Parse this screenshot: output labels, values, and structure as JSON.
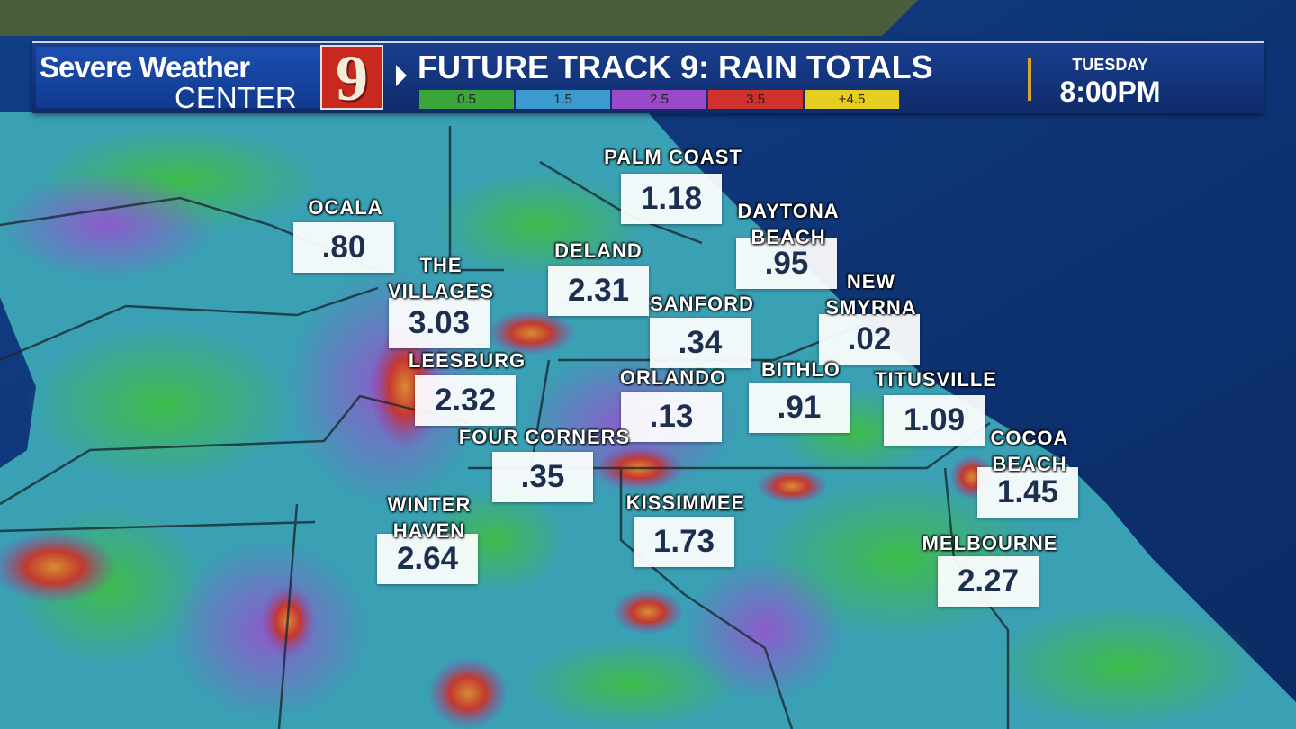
{
  "header": {
    "brand_line1": "Severe Weather",
    "brand_line2": "CENTER",
    "logo_number": "9",
    "title": "FUTURE TRACK 9: RAIN TOTALS",
    "day": "TUESDAY",
    "time": "8:00PM"
  },
  "legend": [
    {
      "label": "0.5",
      "color": "#3aa63a"
    },
    {
      "label": "1.5",
      "color": "#3b9bd0"
    },
    {
      "label": "2.5",
      "color": "#9a49c8"
    },
    {
      "label": "3.5",
      "color": "#d0312d"
    },
    {
      "label": "+4.5",
      "color": "#e5cd22"
    }
  ],
  "cities": [
    {
      "name": "PALM COAST",
      "value": "1.18"
    },
    {
      "name": "OCALA",
      "value": ".80"
    },
    {
      "name": "DAYTONA\nBEACH",
      "value": ".95"
    },
    {
      "name": "DELAND",
      "value": "2.31"
    },
    {
      "name": "THE\nVILLAGES",
      "value": "3.03"
    },
    {
      "name": "NEW\nSMYRNA",
      "value": ".02"
    },
    {
      "name": "SANFORD",
      "value": ".34"
    },
    {
      "name": "LEESBURG",
      "value": "2.32"
    },
    {
      "name": "BITHLO",
      "value": ".91"
    },
    {
      "name": "ORLANDO",
      "value": ".13"
    },
    {
      "name": "TITUSVILLE",
      "value": "1.09"
    },
    {
      "name": "FOUR CORNERS",
      "value": ".35"
    },
    {
      "name": "COCOA\nBEACH",
      "value": "1.45"
    },
    {
      "name": "WINTER\nHAVEN",
      "value": "2.64"
    },
    {
      "name": "KISSIMMEE",
      "value": "1.73"
    },
    {
      "name": "MELBOURNE",
      "value": "2.27"
    }
  ]
}
